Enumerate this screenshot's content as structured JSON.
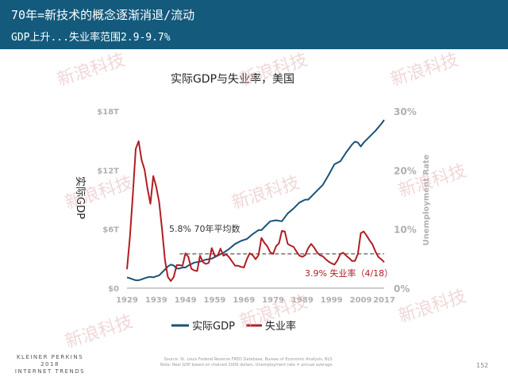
{
  "header": {
    "line1": "70年=新技术的概念逐渐消退/流动",
    "line2": "GDP上升...失业率范围2.9-9.7%"
  },
  "chart_data": {
    "type": "line",
    "title": "实际GDP与失业率，美国",
    "y_left_label": "实际GDP",
    "y_right_label": "Unemployment Rate",
    "y_left_ticks": [
      "$0",
      "$6T",
      "$12T",
      "$18T"
    ],
    "y_left_range": [
      0,
      18
    ],
    "y_right_ticks": [
      "0%",
      "10%",
      "20%",
      "30%"
    ],
    "y_right_range": [
      0,
      30
    ],
    "x_range": [
      1929,
      2017
    ],
    "x_ticks": [
      "1929",
      "1939",
      "1949",
      "1959",
      "1969",
      "1979",
      "1989",
      "1999",
      "2009",
      "2017"
    ],
    "series": [
      {
        "name": "实际GDP",
        "color": "#1a5276",
        "axis": "left",
        "x": [
          1929,
          1930,
          1931,
          1932,
          1933,
          1934,
          1935,
          1936,
          1937,
          1938,
          1939,
          1940,
          1941,
          1942,
          1943,
          1944,
          1945,
          1946,
          1947,
          1948,
          1949,
          1950,
          1952,
          1954,
          1956,
          1958,
          1960,
          1962,
          1964,
          1966,
          1968,
          1970,
          1972,
          1974,
          1975,
          1976,
          1978,
          1980,
          1982,
          1984,
          1986,
          1988,
          1990,
          1991,
          1992,
          1994,
          1996,
          1998,
          2000,
          2002,
          2004,
          2006,
          2007,
          2008,
          2009,
          2010,
          2012,
          2014,
          2016,
          2017
        ],
        "values": [
          1.1,
          1.0,
          0.9,
          0.8,
          0.8,
          0.9,
          1.0,
          1.1,
          1.15,
          1.1,
          1.2,
          1.3,
          1.6,
          1.9,
          2.2,
          2.4,
          2.3,
          2.0,
          2.0,
          2.1,
          2.1,
          2.3,
          2.6,
          2.7,
          2.9,
          3.0,
          3.3,
          3.6,
          4.0,
          4.5,
          4.8,
          5.0,
          5.5,
          5.9,
          5.9,
          6.2,
          6.8,
          6.9,
          6.8,
          7.6,
          8.1,
          8.7,
          9.0,
          9.0,
          9.3,
          9.9,
          10.5,
          11.5,
          12.6,
          12.9,
          13.8,
          14.6,
          14.9,
          14.8,
          14.4,
          14.8,
          15.4,
          16.0,
          16.7,
          17.1
        ]
      },
      {
        "name": "失业率",
        "color": "#b01e23",
        "axis": "right",
        "x": [
          1929,
          1930,
          1931,
          1932,
          1933,
          1934,
          1935,
          1936,
          1937,
          1938,
          1939,
          1940,
          1941,
          1942,
          1943,
          1944,
          1945,
          1946,
          1947,
          1948,
          1949,
          1950,
          1951,
          1952,
          1953,
          1954,
          1955,
          1956,
          1957,
          1958,
          1959,
          1960,
          1961,
          1962,
          1963,
          1964,
          1965,
          1966,
          1967,
          1968,
          1969,
          1970,
          1971,
          1972,
          1973,
          1974,
          1975,
          1976,
          1977,
          1978,
          1979,
          1980,
          1981,
          1982,
          1983,
          1984,
          1985,
          1986,
          1987,
          1988,
          1989,
          1990,
          1991,
          1992,
          1993,
          1994,
          1995,
          1996,
          1997,
          1998,
          1999,
          2000,
          2001,
          2002,
          2003,
          2004,
          2005,
          2006,
          2007,
          2008,
          2009,
          2010,
          2011,
          2012,
          2013,
          2014,
          2015,
          2016,
          2017
        ],
        "values": [
          3.2,
          8.7,
          15.9,
          23.6,
          24.9,
          21.7,
          20.1,
          16.9,
          14.3,
          19.0,
          17.2,
          14.6,
          9.9,
          4.7,
          1.9,
          1.2,
          1.9,
          3.9,
          3.9,
          3.8,
          5.9,
          5.3,
          3.3,
          3.0,
          2.9,
          5.5,
          4.4,
          4.1,
          4.3,
          6.8,
          5.5,
          5.5,
          6.7,
          5.5,
          5.7,
          5.2,
          4.5,
          3.8,
          3.8,
          3.6,
          3.5,
          4.9,
          5.9,
          5.6,
          4.9,
          5.6,
          8.5,
          7.7,
          7.1,
          6.1,
          5.8,
          7.1,
          7.6,
          9.7,
          9.6,
          7.5,
          7.2,
          7.0,
          6.2,
          5.5,
          5.3,
          5.6,
          6.8,
          7.5,
          6.9,
          6.1,
          5.6,
          5.4,
          4.9,
          4.5,
          4.2,
          4.0,
          4.7,
          5.8,
          6.0,
          5.5,
          5.1,
          4.6,
          4.6,
          5.8,
          9.3,
          9.6,
          8.9,
          8.1,
          7.4,
          6.2,
          5.3,
          4.9,
          4.4
        ]
      }
    ],
    "reference_line": {
      "value": 5.8,
      "axis": "right",
      "style": "dashed",
      "color": "#333333"
    },
    "annotations": [
      {
        "text": "5.8% 70年平均数",
        "color": "#333333"
      },
      {
        "text": "3.9% 失业率（4/18）",
        "color": "#b01e23"
      }
    ],
    "legend_position": "bottom-center",
    "grid": false
  },
  "watermark": "新浪科技",
  "footer": {
    "brand_line1": "KLEINER PERKINS",
    "brand_line2": "2018",
    "brand_line3": "INTERNET TRENDS",
    "source_line1": "Source: St. Louis Federal Reserve FRED Database, Bureau of Economic Analysis, BLS.",
    "source_line2": "Note: Real GDP based on chained 2009 dollars. Unemployment rate = annual average.",
    "page_number": "152"
  }
}
